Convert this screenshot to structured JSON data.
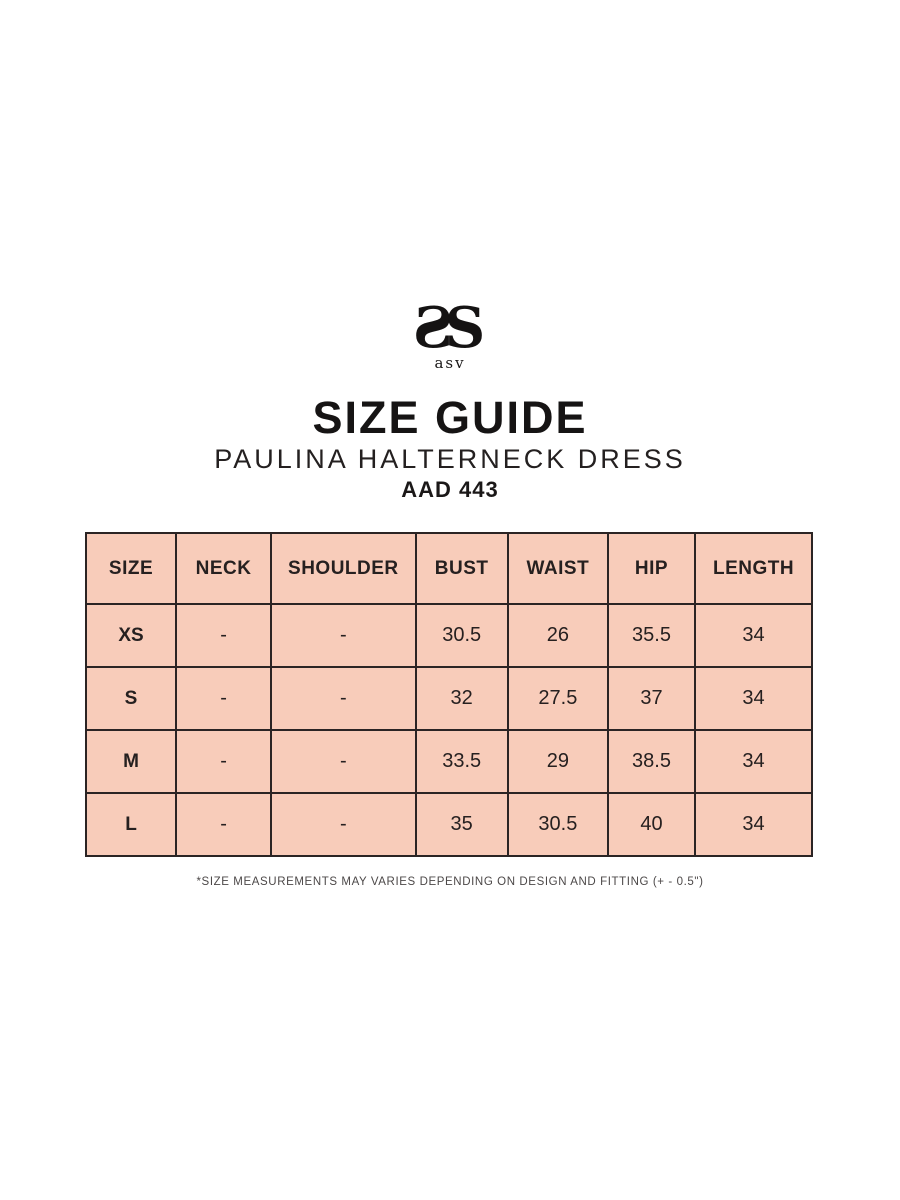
{
  "brand": {
    "monogram": "S",
    "logo_text": "asv"
  },
  "header": {
    "title": "SIZE GUIDE",
    "product_name": "PAULINA HALTERNECK DRESS",
    "product_code": "AAD 443"
  },
  "size_table": {
    "cell_bg": "#f8ccba",
    "border_color": "#2b2424",
    "columns": [
      "SIZE",
      "NECK",
      "SHOULDER",
      "BUST",
      "WAIST",
      "HIP",
      "LENGTH"
    ],
    "col_widths": [
      "12.4%",
      "13.1%",
      "19.9%",
      "12.7%",
      "13.8%",
      "12.0%",
      "16.1%"
    ],
    "rows": [
      [
        "XS",
        "-",
        "-",
        "30.5",
        "26",
        "35.5",
        "34"
      ],
      [
        "S",
        "-",
        "-",
        "32",
        "27.5",
        "37",
        "34"
      ],
      [
        "M",
        "-",
        "-",
        "33.5",
        "29",
        "38.5",
        "34"
      ],
      [
        "L",
        "-",
        "-",
        "35",
        "30.5",
        "40",
        "34"
      ]
    ]
  },
  "footnote": "*SIZE MEASUREMENTS MAY VARIES DEPENDING ON DESIGN AND FITTING (+ - 0.5\")"
}
